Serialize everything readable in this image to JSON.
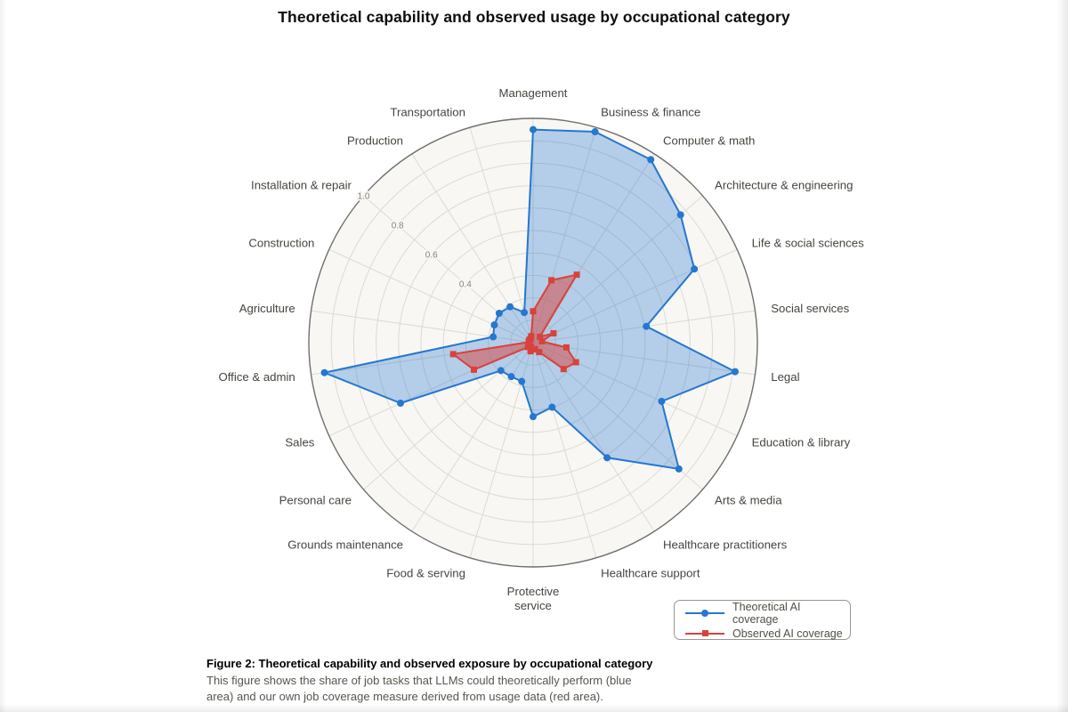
{
  "title": "Theoretical capability and observed usage by occupational category",
  "chart_data": {
    "type": "radar",
    "categories": [
      "Management",
      "Business & finance",
      "Computer & math",
      "Architecture & engineering",
      "Life & social sciences",
      "Social services",
      "Legal",
      "Education & library",
      "Arts & media",
      "Healthcare practitioners",
      "Healthcare support",
      "Protective service",
      "Food & serving",
      "Grounds maintenance",
      "Personal care",
      "Sales",
      "Office & admin",
      "Agriculture",
      "Construction",
      "Installation & repair",
      "Production",
      "Transportation"
    ],
    "series": [
      {
        "name": "Theoretical AI coverage",
        "marker": "circle",
        "color": "#2577cf",
        "fill_rgba": "rgba(37,119,207,0.32)",
        "values": [
          0.95,
          0.98,
          0.97,
          0.87,
          0.79,
          0.51,
          0.91,
          0.63,
          0.86,
          0.61,
          0.3,
          0.33,
          0.18,
          0.18,
          0.19,
          0.65,
          0.94,
          0.18,
          0.19,
          0.2,
          0.19,
          0.14
        ]
      },
      {
        "name": "Observed AI coverage",
        "marker": "square",
        "color": "#d8423c",
        "fill_rgba": "rgba(216,66,60,0.50)",
        "values": [
          0.14,
          0.29,
          0.36,
          0.04,
          0.1,
          0.04,
          0.15,
          0.21,
          0.18,
          0.05,
          0.03,
          0.03,
          0.04,
          0.02,
          0.03,
          0.29,
          0.36,
          0.02,
          0.02,
          0.02,
          0.02,
          0.03
        ]
      }
    ],
    "radial_tick_labels": [
      "0.4",
      "0.6",
      "0.8",
      "1.0"
    ],
    "radial_tick_values": [
      0.4,
      0.6,
      0.8,
      1.0
    ],
    "rmax": 1.0,
    "grid_step": 0.1,
    "grid": "on",
    "tick_label_spoke_index": 19,
    "two_line_category_index": 11,
    "legend_position": "bottom-right",
    "colors": {
      "grid_line": "#dbdbd4",
      "outer_circle": "#6f6f6c",
      "polar_background": "#f8f7f3",
      "category_label": "#45453f",
      "tick_label": "#85847d"
    }
  },
  "legend": {
    "items": [
      "Theoretical AI coverage",
      "Observed AI coverage"
    ]
  },
  "caption": {
    "bold_line": "Figure 2: Theoretical capability and observed exposure by occupational category",
    "line2": "This figure shows the share of job tasks that LLMs could theoretically perform (blue",
    "line3": "area) and our own job coverage measure derived from usage data (red area)."
  }
}
